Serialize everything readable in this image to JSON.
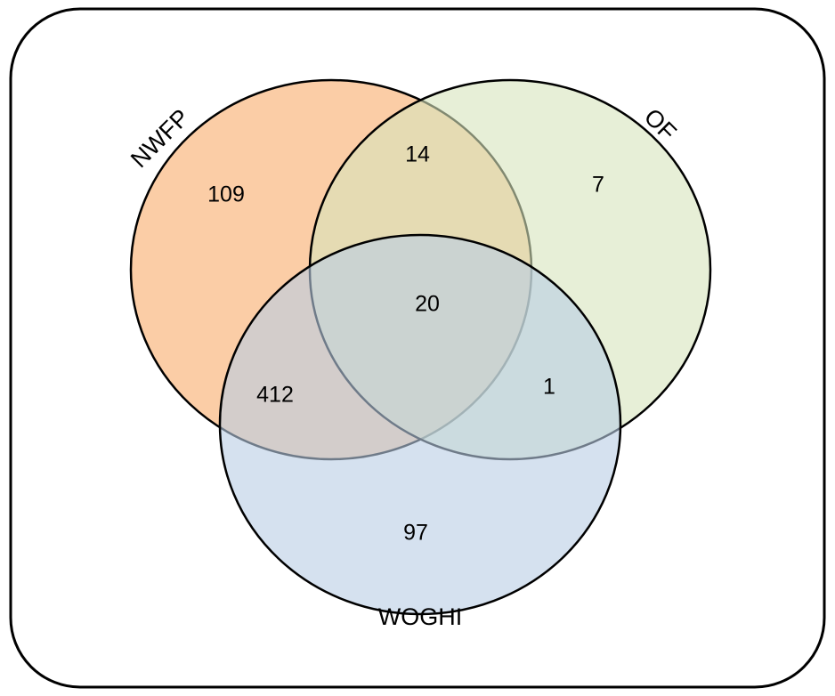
{
  "diagram": {
    "type": "venn",
    "sets": [
      {
        "id": "nwfp",
        "label": "NWFP",
        "fill": "#fac090"
      },
      {
        "id": "of",
        "label": "OF",
        "fill": "#d7e4bd"
      },
      {
        "id": "woghi",
        "label": "WOGHI",
        "fill": "#b9cde5"
      }
    ],
    "regions": {
      "nwfp_only": "109",
      "of_only": "7",
      "woghi_only": "97",
      "nwfp_of": "14",
      "nwfp_woghi": "412",
      "of_woghi": "1",
      "all_three": "20"
    },
    "colors": {
      "frame_stroke": "#000000",
      "circle_stroke": "#000000"
    }
  }
}
